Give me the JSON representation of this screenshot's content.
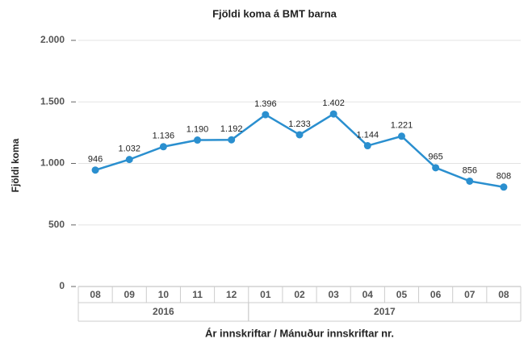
{
  "chart_data": {
    "type": "line",
    "title": "Fjöldi koma á  BMT barna",
    "x_label": "Ár innskriftar / Mánuður innskriftar nr.",
    "y_label": "Fjöldi koma",
    "categories": [
      "08",
      "09",
      "10",
      "11",
      "12",
      "01",
      "02",
      "03",
      "04",
      "05",
      "06",
      "07",
      "08"
    ],
    "category_groups": [
      "2016",
      "2016",
      "2016",
      "2016",
      "2016",
      "2017",
      "2017",
      "2017",
      "2017",
      "2017",
      "2017",
      "2017",
      "2017"
    ],
    "series": [
      {
        "name": "Fjöldi koma",
        "color": "#2a8fcf",
        "values": [
          946,
          1032,
          1136,
          1190,
          1192,
          1396,
          1233,
          1402,
          1144,
          1221,
          965,
          856,
          808
        ],
        "value_labels": [
          "946",
          "1.032",
          "1.136",
          "1.190",
          "1.192",
          "1.396",
          "1.233",
          "1.402",
          "1.144",
          "1.221",
          "965",
          "856",
          "808"
        ]
      }
    ],
    "ylim": [
      0,
      2000
    ],
    "yticks": [
      0,
      500,
      {
        "value": 1000,
        "label": "1.000"
      },
      {
        "value": 1500,
        "label": "1.500"
      },
      {
        "value": 2000,
        "label": "2.000"
      }
    ],
    "grid": true
  }
}
